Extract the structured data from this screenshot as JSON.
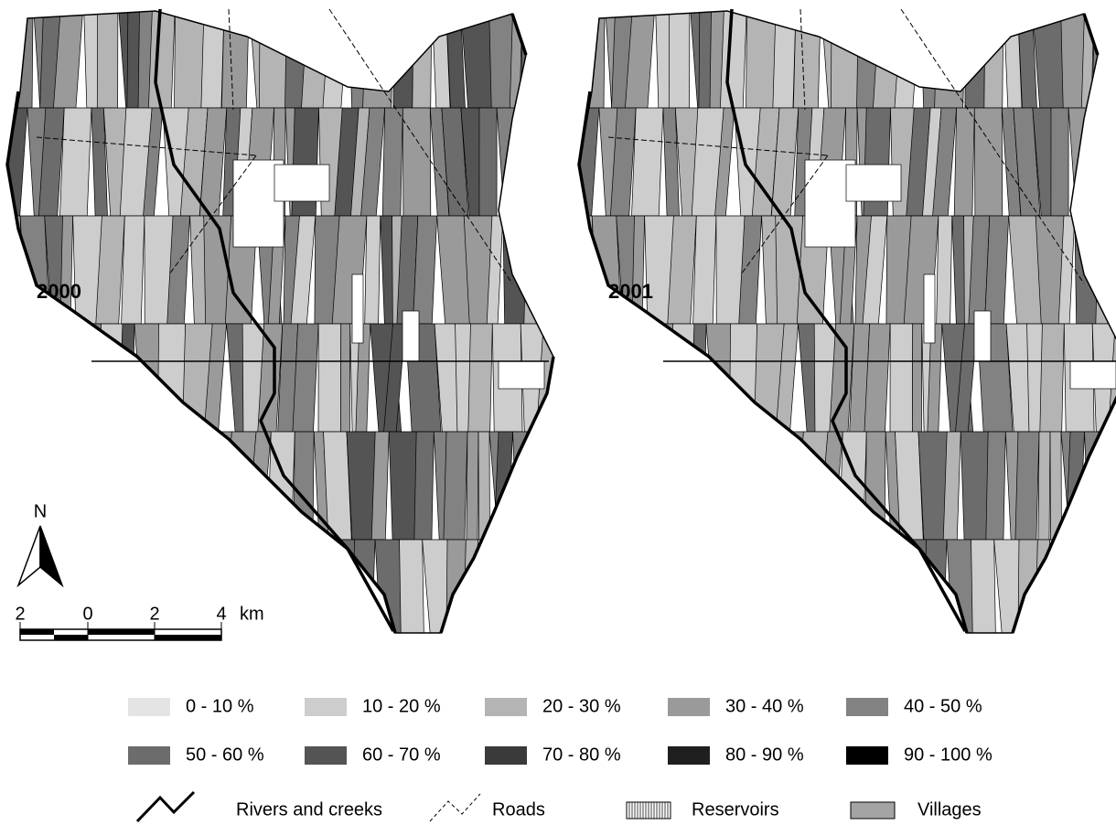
{
  "maps": [
    {
      "label": "2000"
    },
    {
      "label": "2001"
    }
  ],
  "north_arrow": "N",
  "scale_bar": {
    "labels": [
      "2",
      "0",
      "2",
      "4"
    ],
    "unit": "km"
  },
  "legend": {
    "classes": [
      {
        "label": "0 - 10 %",
        "color": "#e4e4e4"
      },
      {
        "label": "10 - 20 %",
        "color": "#cdcdcd"
      },
      {
        "label": "20 - 30 %",
        "color": "#b4b4b4"
      },
      {
        "label": "30 - 40 %",
        "color": "#9a9a9a"
      },
      {
        "label": "40 - 50 %",
        "color": "#828282"
      },
      {
        "label": "50 - 60 %",
        "color": "#6c6c6c"
      },
      {
        "label": "60 - 70 %",
        "color": "#545454"
      },
      {
        "label": "70 - 80 %",
        "color": "#3a3a3a"
      },
      {
        "label": "80 - 90 %",
        "color": "#1f1f1f"
      },
      {
        "label": "90 - 100 %",
        "color": "#000000"
      }
    ],
    "features": [
      {
        "label": "Rivers and creeks"
      },
      {
        "label": "Roads"
      },
      {
        "label": "Reservoirs"
      },
      {
        "label": "Villages"
      }
    ]
  }
}
